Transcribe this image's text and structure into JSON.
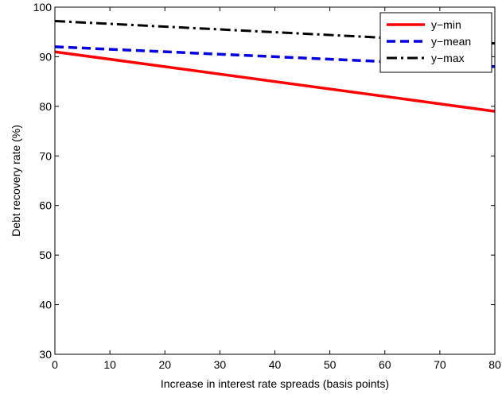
{
  "chart_data": {
    "type": "line",
    "title": "",
    "xlabel": "Increase in interest rate spreads (basis points)",
    "ylabel": "Debt recovery rate (%)",
    "xlim": [
      0,
      80
    ],
    "ylim": [
      30,
      100
    ],
    "xticks": [
      0,
      10,
      20,
      30,
      40,
      50,
      60,
      70,
      80
    ],
    "yticks": [
      30,
      40,
      50,
      60,
      70,
      80,
      90,
      100
    ],
    "grid": false,
    "legend_position": "top-right",
    "series": [
      {
        "name": "y−min",
        "color": "#ff0000",
        "style": "solid",
        "x": [
          0,
          80
        ],
        "y": [
          91,
          79
        ]
      },
      {
        "name": "y−mean",
        "color": "#0000ee",
        "style": "dashed",
        "x": [
          0,
          80
        ],
        "y": [
          92,
          88
        ]
      },
      {
        "name": "y−max",
        "color": "#000000",
        "style": "dashdot",
        "x": [
          0,
          80
        ],
        "y": [
          97.2,
          92.7
        ]
      }
    ]
  }
}
